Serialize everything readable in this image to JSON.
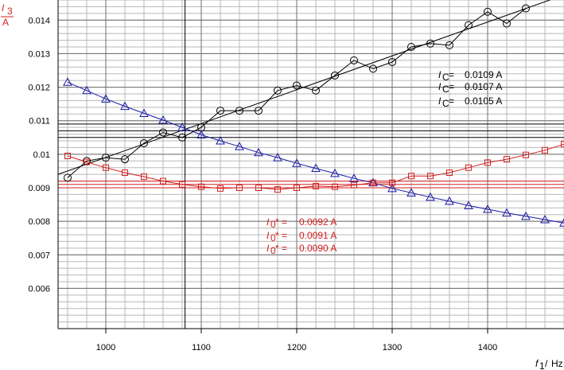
{
  "chart_data": {
    "type": "line",
    "y_axis_label": {
      "symbol": "I",
      "subscript": "3",
      "unit": "A"
    },
    "x_axis_label": {
      "symbol": "f",
      "subscript": "1",
      "unit": "Hz"
    },
    "xlim": [
      950,
      1480
    ],
    "ylim": [
      0.0048,
      0.0146
    ],
    "x_ticks": [
      1000,
      1100,
      1200,
      1300,
      1400
    ],
    "x_minor_step": 20,
    "y_ticks": [
      0.006,
      0.007,
      0.008,
      0.009,
      0.01,
      0.011,
      0.012,
      0.013,
      0.014
    ],
    "y_tick_labels": [
      "0.006",
      "0.007",
      "0.008",
      "0.009",
      "0.01",
      "0.011",
      "0.012",
      "0.013",
      "0.014"
    ],
    "y_minor_step": 0.0002,
    "grid": true,
    "series": [
      {
        "marker": "circle",
        "color": "#000000",
        "x": [
          960,
          980,
          1000,
          1020,
          1040,
          1060,
          1080,
          1100,
          1120,
          1140,
          1160,
          1180,
          1200,
          1220,
          1240,
          1260,
          1280,
          1300,
          1320,
          1340,
          1360,
          1380,
          1400,
          1420,
          1440
        ],
        "y": [
          0.0093,
          0.0098,
          0.0099,
          0.00985,
          0.01033,
          0.01065,
          0.0105,
          0.0108,
          0.0113,
          0.0113,
          0.0113,
          0.0119,
          0.01205,
          0.0119,
          0.01235,
          0.0128,
          0.01255,
          0.01275,
          0.0132,
          0.0133,
          0.01325,
          0.01385,
          0.01425,
          0.0139,
          0.01435
        ],
        "fit": {
          "x": [
            950,
            1480
          ],
          "y": [
            0.0094,
            0.01475
          ]
        }
      },
      {
        "marker": "triangle",
        "color": "#1a1aa8",
        "x": [
          960,
          980,
          1000,
          1020,
          1040,
          1060,
          1080,
          1100,
          1120,
          1140,
          1160,
          1180,
          1200,
          1220,
          1240,
          1260,
          1280,
          1300,
          1320,
          1340,
          1360,
          1380,
          1400,
          1420,
          1440,
          1460,
          1480
        ],
        "y": [
          0.01215,
          0.0119,
          0.01165,
          0.01143,
          0.01122,
          0.01102,
          0.0108,
          0.01058,
          0.0104,
          0.01023,
          0.01005,
          0.0099,
          0.00973,
          0.00958,
          0.00943,
          0.00928,
          0.00915,
          0.00898,
          0.00885,
          0.00872,
          0.0086,
          0.00847,
          0.00836,
          0.00825,
          0.00815,
          0.00805,
          0.00795
        ]
      },
      {
        "marker": "square",
        "color": "#d42020",
        "x": [
          960,
          980,
          1000,
          1020,
          1040,
          1060,
          1080,
          1100,
          1120,
          1140,
          1160,
          1180,
          1200,
          1220,
          1240,
          1260,
          1280,
          1300,
          1320,
          1340,
          1360,
          1380,
          1400,
          1420,
          1440,
          1460,
          1480
        ],
        "y": [
          0.00995,
          0.00977,
          0.0096,
          0.00945,
          0.00933,
          0.0092,
          0.0091,
          0.00903,
          0.00898,
          0.009,
          0.009,
          0.00895,
          0.009,
          0.00905,
          0.00903,
          0.00908,
          0.00915,
          0.00915,
          0.00935,
          0.00935,
          0.00945,
          0.0096,
          0.00975,
          0.00985,
          0.00998,
          0.01012,
          0.0103
        ]
      }
    ],
    "reference_lines": {
      "horizontal_black": [
        0.0109,
        0.0107,
        0.0105
      ],
      "horizontal_red": [
        0.0092,
        0.0091,
        0.009
      ],
      "vertical_black": [
        1083
      ]
    },
    "annotations": {
      "ic": {
        "color": "#000000",
        "symbol": "I",
        "subscript": "C",
        "suffix": " =",
        "values": [
          "0.0109 A",
          "0.0107 A",
          "0.0105 A"
        ]
      },
      "i0": {
        "color": "#d42020",
        "symbol": "I",
        "subscript": "0",
        "suffix": "* =",
        "values": [
          "0.0092 A",
          "0.0091 A",
          "0.0090 A"
        ]
      }
    }
  }
}
